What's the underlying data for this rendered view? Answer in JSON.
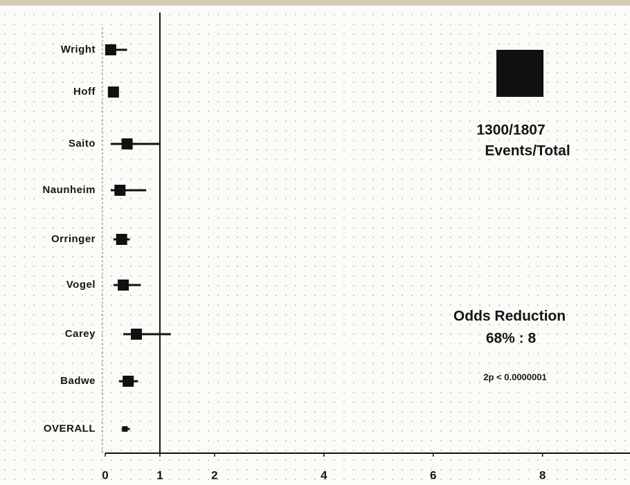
{
  "chart_data": {
    "type": "forest",
    "categories": [
      "Wright",
      "Hoff",
      "Saito",
      "Naunheim",
      "Orringer",
      "Vogel",
      "Carey",
      "Badwe",
      "OVERALL"
    ],
    "values": [
      0.1,
      0.15,
      0.4,
      0.27,
      0.3,
      0.33,
      0.57,
      0.42,
      0.36
    ],
    "lower": [
      0.0,
      0.05,
      0.1,
      0.1,
      0.15,
      0.15,
      0.33,
      0.25,
      0.3
    ],
    "upper": [
      0.4,
      0.25,
      1.0,
      0.75,
      0.45,
      0.65,
      1.2,
      0.6,
      0.45
    ],
    "color": "#111111",
    "xlim": [
      0,
      9.6
    ],
    "xticks": [
      0,
      1,
      2,
      4,
      6,
      8
    ],
    "reference_line": 1,
    "annotations": [
      "1300/1807",
      "Events/Total",
      "Odds Reduction",
      "68% : 8",
      "2p < 0.0000001"
    ]
  }
}
